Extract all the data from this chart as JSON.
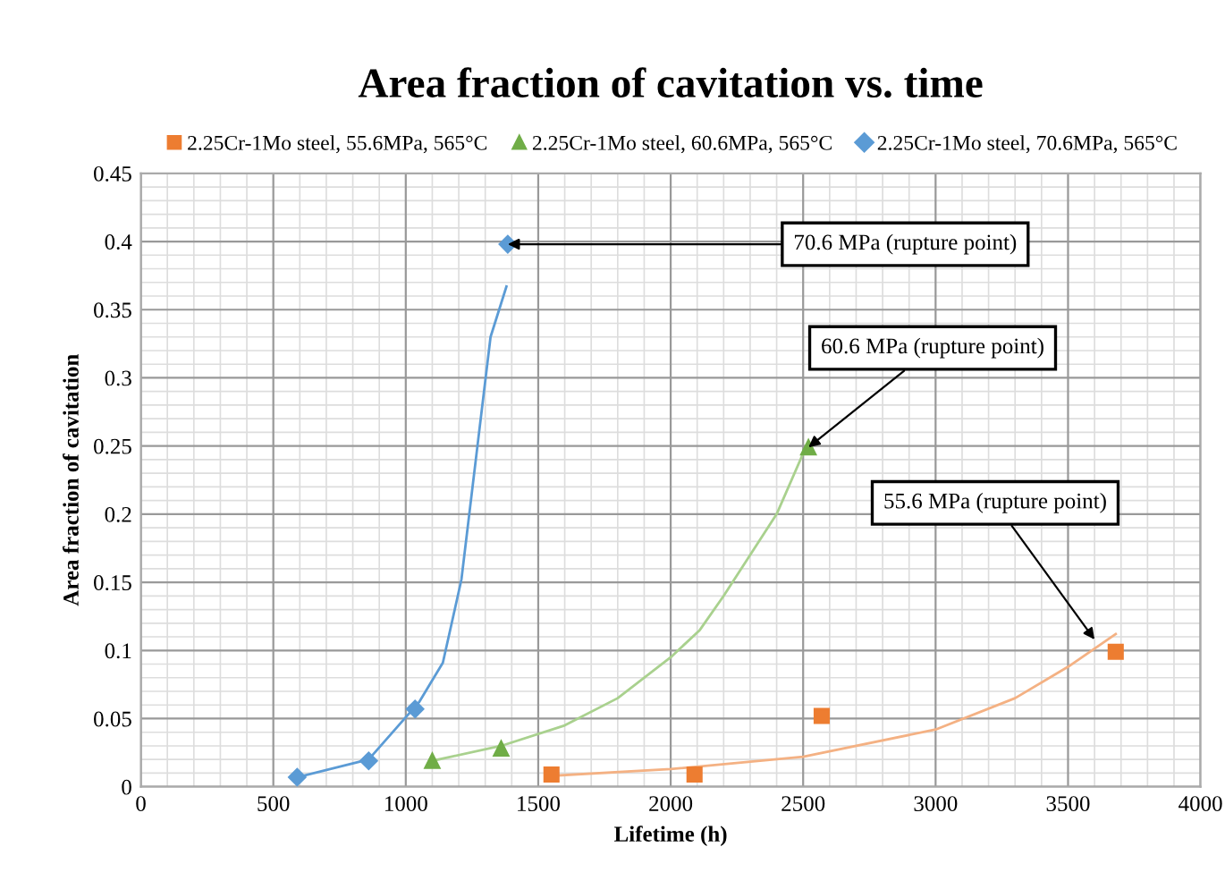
{
  "chart_data": {
    "type": "scatter",
    "title": "Area fraction of cavitation vs. time",
    "xlabel": "Lifetime (h)",
    "ylabel": "Area fraction of cavitation",
    "xlim": [
      0,
      4000
    ],
    "xticks": [
      0,
      500,
      1000,
      1500,
      2000,
      2500,
      3000,
      3500,
      4000
    ],
    "ylim": [
      0,
      0.45
    ],
    "yticks": [
      0,
      0.05,
      0.1,
      0.15,
      0.2,
      0.25,
      0.3,
      0.35,
      0.4,
      0.45
    ],
    "grid": true,
    "legend": "top",
    "series": [
      {
        "name": "2.25Cr-1Mo steel, 55.6MPa, 565°C",
        "color": "#ed7d31",
        "marker": "square",
        "x": [
          1550,
          2090,
          2570,
          3680
        ],
        "values": [
          0.009,
          0.009,
          0.052,
          0.099
        ]
      },
      {
        "name": "2.25Cr-1Mo steel, 60.6MPa, 565°C",
        "color": "#70ad47",
        "marker": "triangle",
        "x": [
          1100,
          1360,
          2520
        ],
        "values": [
          0.019,
          0.028,
          0.249
        ]
      },
      {
        "name": "2.25Cr-1Mo steel, 70.6MPa, 565°C",
        "color": "#5b9bd5",
        "marker": "diamond",
        "x": [
          590,
          860,
          1035,
          1385
        ],
        "values": [
          0.007,
          0.019,
          0.057,
          0.398
        ]
      },
      {
        "type": "line",
        "color": "#f4b183",
        "x": [
          1550,
          2000,
          2500,
          3000,
          3300,
          3500,
          3680
        ],
        "values": [
          0.008,
          0.013,
          0.022,
          0.042,
          0.065,
          0.088,
          0.112
        ]
      },
      {
        "type": "line",
        "color": "#a9d18e",
        "x": [
          1100,
          1360,
          1600,
          1800,
          2000,
          2110,
          2200,
          2400,
          2510
        ],
        "values": [
          0.019,
          0.03,
          0.045,
          0.065,
          0.095,
          0.115,
          0.14,
          0.2,
          0.249
        ]
      },
      {
        "type": "line",
        "color": "#5b9bd5",
        "x": [
          590,
          860,
          1050,
          1140,
          1210,
          1320,
          1380
        ],
        "values": [
          0.007,
          0.02,
          0.062,
          0.091,
          0.152,
          0.33,
          0.367
        ]
      }
    ],
    "annotations": [
      {
        "text": "70.6 MPa (rupture point)",
        "x": 1385,
        "y": 0.398
      },
      {
        "text": "60.6 MPa (rupture point)",
        "x": 2520,
        "y": 0.249
      },
      {
        "text": "55.6 MPa (rupture point)",
        "x": 3600,
        "y": 0.108
      }
    ]
  }
}
